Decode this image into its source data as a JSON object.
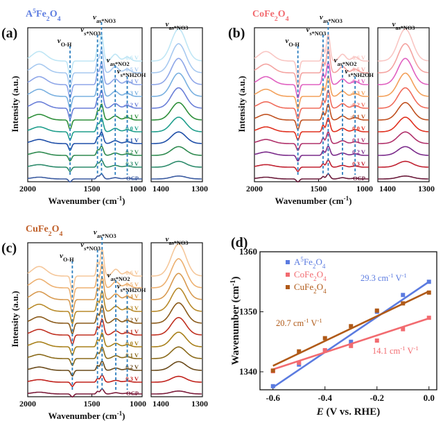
{
  "figure_title": "In situ ATR-SEIRAS spectra and Stark tuning slopes",
  "colors": {
    "A5Fe2O4": "#5b7be0",
    "CoFe2O4": "#f26b70",
    "CuFe2O4": "#b05a18",
    "dashed": "#2f80c0"
  },
  "panels": [
    {
      "letter": "(a)",
      "title": "A5Fe2O4",
      "title_main": "A",
      "title_sup": "5",
      "title_rest": "Fe",
      "title_sub1": "2",
      "title_mid": "O",
      "title_sub2": "4",
      "title_color": "#5b7be0",
      "ylabel": "Intensity (a.u.)",
      "xlabel": "Wavenumber (cm",
      "xlabel_sup": "-1",
      "xlabel_tail": ")",
      "ticks_left": [
        "2000",
        "1500",
        "1000"
      ],
      "ticks_right": [
        "1400",
        "1300"
      ],
      "potentials": [
        "-0.6 V",
        "-0.5 V",
        "-0.4 V",
        "-0.3 V",
        "-0.2 V",
        "-0.1 V",
        "0.0 V",
        "0.1 V",
        "0.2 V",
        "0.3 V",
        "OCP"
      ],
      "curve_colors": [
        "#bfe6f5",
        "#a7c9f0",
        "#8ea6e8",
        "#79b0e0",
        "#6a7fd8",
        "#2e8f3a",
        "#1f9e8c",
        "#1f4fa8",
        "#2e8a4f",
        "#2b8a6a",
        "#3a5aa0"
      ],
      "label_colors": [
        "#bfe6f5",
        "#a7c9f0",
        "#8ea6e8",
        "#79b0e0",
        "#6a7fd8",
        "#2e8f3a",
        "#1f9e8c",
        "#1f4fa8",
        "#2e8a4f",
        "#2b8a6a",
        "#3a5aa0"
      ],
      "peaks": [
        {
          "label": "v",
          "sub": "O-H",
          "wn": 1630
        },
        {
          "label": "v",
          "sub": "s*NO3",
          "wn": 1390
        },
        {
          "label": "v",
          "sub": "as*NO3",
          "wn": 1355
        },
        {
          "label": "v",
          "sub": "as*NO2",
          "wn": 1235
        },
        {
          "label": "v",
          "sub": "s*NH2OH",
          "wn": 1130
        }
      ],
      "right_label": "v",
      "right_label_sub": "as*NO3"
    },
    {
      "letter": "(b)",
      "title": "CoFe2O4",
      "title_main": "CoFe",
      "title_sup": "",
      "title_rest": "",
      "title_sub1": "2",
      "title_mid": "O",
      "title_sub2": "4",
      "title_color": "#f26b70",
      "ylabel": "Intensity (a.u.)",
      "xlabel": "Wavenumber (cm",
      "xlabel_sup": "-1",
      "xlabel_tail": ")",
      "ticks_left": [
        "2000",
        "1500",
        "1000"
      ],
      "ticks_right": [
        "1400",
        "1300"
      ],
      "potentials": [
        "-0.6 V",
        "-0.5 V",
        "-0.4 V",
        "-0.3 V",
        "-0.2 V",
        "-0.1 V",
        "0.0 V",
        "0.1 V",
        "0.2 V",
        "0.3 V",
        "OCP"
      ],
      "curve_colors": [
        "#f9c6c3",
        "#f4a3a0",
        "#e060c0",
        "#f3a05a",
        "#f06b5a",
        "#c0501f",
        "#e0301f",
        "#b0306a",
        "#7a2a8a",
        "#c02030",
        "#6a1a3a"
      ],
      "label_colors": [
        "#f9c6c3",
        "#f4a3a0",
        "#e060c0",
        "#f3a05a",
        "#f06b5a",
        "#c0501f",
        "#e0301f",
        "#b0306a",
        "#7a2a8a",
        "#c02030",
        "#6a1a3a"
      ],
      "peaks": [
        {
          "label": "v",
          "sub": "O-H",
          "wn": 1620
        },
        {
          "label": "v",
          "sub": "s*NO3",
          "wn": 1400
        },
        {
          "label": "v",
          "sub": "as*NO3",
          "wn": 1355
        },
        {
          "label": "v",
          "sub": "as*NO2",
          "wn": 1230
        },
        {
          "label": "v",
          "sub": "s*NH2OH",
          "wn": 1120
        }
      ],
      "right_label": "v",
      "right_label_sub": "as*NO3"
    },
    {
      "letter": "(c)",
      "title": "CuFe2O4",
      "title_main": "CuFe",
      "title_sup": "",
      "title_rest": "",
      "title_sub1": "2",
      "title_mid": "O",
      "title_sub2": "4",
      "title_color": "#c0602a",
      "ylabel": "Intensity (a.u.)",
      "xlabel": "Wavenumber (cm",
      "xlabel_sup": "-1",
      "xlabel_tail": ")",
      "ticks_left": [
        "2000",
        "1500",
        "1000"
      ],
      "ticks_right": [
        "1400",
        "1300"
      ],
      "potentials": [
        "-0.6 V",
        "-0.5 V",
        "-0.4 V",
        "-0.3 V",
        "-0.2 V",
        "-0.1 V",
        "0.0 V",
        "0.1 V",
        "0.2 V",
        "0.3 V",
        "OCP"
      ],
      "curve_colors": [
        "#f5c79a",
        "#edb070",
        "#d89a50",
        "#b88a2a",
        "#8a5a1a",
        "#c03020",
        "#a8801a",
        "#8a6a1a",
        "#6a4a1a",
        "#c0201a",
        "#7a1a3a"
      ],
      "label_colors": [
        "#f5c79a",
        "#edb070",
        "#d89a50",
        "#b88a2a",
        "#8a5a1a",
        "#c03020",
        "#a8801a",
        "#8a6a1a",
        "#6a4a1a",
        "#c0201a",
        "#7a1a3a"
      ],
      "peaks": [
        {
          "label": "v",
          "sub": "O-H",
          "wn": 1610
        },
        {
          "label": "v",
          "sub": "s*NO3",
          "wn": 1390
        },
        {
          "label": "v",
          "sub": "as*NO3",
          "wn": 1350
        },
        {
          "label": "v",
          "sub": "as*NO2",
          "wn": 1230
        },
        {
          "label": "v",
          "sub": "s*NH2OH",
          "wn": 1130
        }
      ],
      "right_label": "v",
      "right_label_sub": "as*NO3"
    }
  ],
  "chart_data": {
    "type": "scatter",
    "panel_letter": "(d)",
    "xlabel_italic": "E",
    "xlabel_rest": " (V vs. RHE)",
    "ylabel": "Wavenumber (cm",
    "ylabel_sup": "-1",
    "ylabel_tail": ")",
    "xlim": [
      -0.65,
      0.03
    ],
    "ylim": [
      1337,
      1360
    ],
    "xticks": [
      -0.6,
      -0.4,
      -0.2,
      0.0
    ],
    "xtick_labels": [
      "-0.6",
      "-0.4",
      "-0.2",
      "0.0"
    ],
    "yticks": [
      1340,
      1350,
      1360
    ],
    "ytick_labels": [
      "1340",
      "1350",
      "1360"
    ],
    "legend": [
      {
        "name": "A5Fe2O4",
        "main": "A",
        "sup": "5",
        "rest": "Fe",
        "sub1": "2",
        "mid": "O",
        "sub2": "4"
      },
      {
        "name": "CoFe2O4",
        "main": "CoFe",
        "sup": "",
        "rest": "",
        "sub1": "2",
        "mid": "O",
        "sub2": "4"
      },
      {
        "name": "CuFe2O4",
        "main": "CuFe",
        "sup": "",
        "rest": "",
        "sub1": "2",
        "mid": "O",
        "sub2": "4"
      }
    ],
    "series": [
      {
        "name": "A5Fe2O4",
        "color": "#5b7be0",
        "x": [
          -0.6,
          -0.5,
          -0.4,
          -0.3,
          -0.2,
          -0.1,
          0.0
        ],
        "y": [
          1337.6,
          1341.2,
          1343.5,
          1345.0,
          1350.0,
          1352.8,
          1355.0
        ],
        "fit": [
          [
            -0.6,
            1337.4
          ],
          [
            0.0,
            1355.0
          ]
        ],
        "slope_label": "29.3 cm",
        "slope_unit_sup": "-1",
        "slope_tail": " V",
        "slope_tail_sup": "-1"
      },
      {
        "name": "CoFe2O4",
        "color": "#f26b70",
        "x": [
          -0.6,
          -0.5,
          -0.4,
          -0.3,
          -0.2,
          -0.1,
          0.0
        ],
        "y": [
          1340.1,
          1341.5,
          1343.6,
          1344.3,
          1345.2,
          1347.1,
          1349.0
        ],
        "fit": [
          [
            -0.6,
            1340.4
          ],
          [
            0.0,
            1348.9
          ]
        ],
        "slope_label": "14.1 cm",
        "slope_unit_sup": "-1",
        "slope_tail": " V",
        "slope_tail_sup": "-1"
      },
      {
        "name": "CuFe2O4",
        "color": "#b05a18",
        "x": [
          -0.6,
          -0.5,
          -0.4,
          -0.3,
          -0.2,
          -0.1,
          0.0
        ],
        "y": [
          1340.2,
          1343.4,
          1345.6,
          1347.6,
          1350.2,
          1351.4,
          1353.2
        ],
        "fit": [
          [
            -0.6,
            1341.0
          ],
          [
            0.0,
            1353.4
          ]
        ],
        "slope_label": "20.7 cm",
        "slope_unit_sup": "-1",
        "slope_tail": " V",
        "slope_tail_sup": "-1"
      }
    ]
  }
}
